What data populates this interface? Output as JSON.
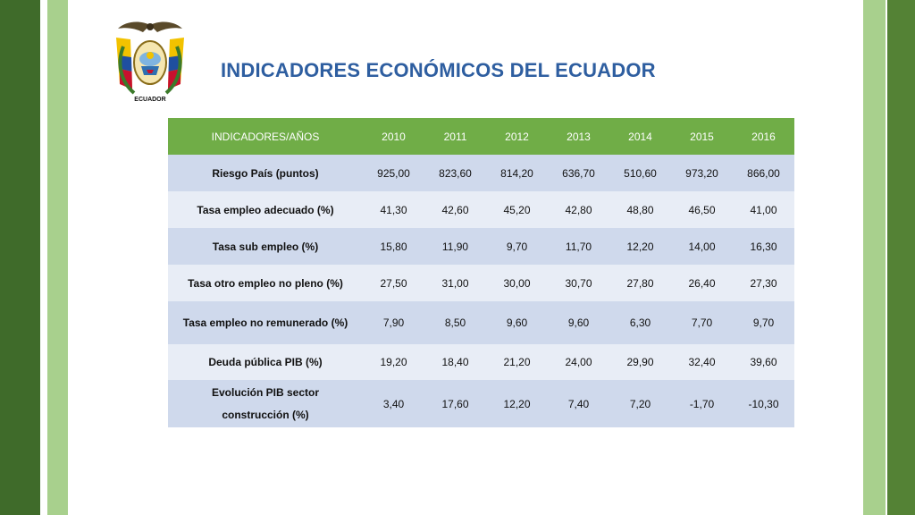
{
  "emblem": {
    "text": "ECUADOR"
  },
  "title": "INDICADORES ECONÓMICOS DEL ECUADOR",
  "table": {
    "header": [
      "INDICADORES/AÑOS",
      "2010",
      "2011",
      "2012",
      "2013",
      "2014",
      "2015",
      "2016"
    ],
    "rows": [
      {
        "label": "Riesgo País (puntos)",
        "values": [
          "925,00",
          "823,60",
          "814,20",
          "636,70",
          "510,60",
          "973,20",
          "866,00"
        ]
      },
      {
        "label": "Tasa empleo adecuado (%)",
        "values": [
          "41,30",
          "42,60",
          "45,20",
          "42,80",
          "48,80",
          "46,50",
          "41,00"
        ]
      },
      {
        "label": "Tasa sub empleo (%)",
        "values": [
          "15,80",
          "11,90",
          "9,70",
          "11,70",
          "12,20",
          "14,00",
          "16,30"
        ]
      },
      {
        "label": "Tasa otro empleo no pleno (%)",
        "values": [
          "27,50",
          "31,00",
          "30,00",
          "30,70",
          "27,80",
          "26,40",
          "27,30"
        ]
      },
      {
        "label": "Tasa empleo no remunerado (%)",
        "values": [
          "7,90",
          "8,50",
          "9,60",
          "9,60",
          "6,30",
          "7,70",
          "9,70"
        ]
      },
      {
        "label": "Deuda pública PIB (%)",
        "values": [
          "19,20",
          "18,40",
          "21,20",
          "24,00",
          "29,90",
          "32,40",
          "39,60"
        ]
      },
      {
        "label_line1": "Evolución PIB sector",
        "label_line2": "construcción (%)",
        "values": [
          "3,40",
          "17,60",
          "12,20",
          "7,40",
          "7,20",
          "-1,70",
          "-10,30"
        ]
      }
    ]
  },
  "colors": {
    "header_bg": "#70ad47",
    "row_odd": "#cfd9ec",
    "row_even": "#e8edf6",
    "title": "#2e5ea0"
  }
}
